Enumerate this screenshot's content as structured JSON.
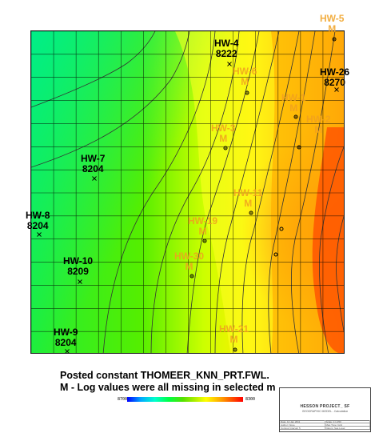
{
  "map": {
    "wells": [
      {
        "name": "HW-5",
        "value": "M",
        "missing": true
      },
      {
        "name": "HW-4",
        "value": "8222",
        "missing": false
      },
      {
        "name": "HW-26",
        "value": "8270",
        "missing": false
      },
      {
        "name": "HW-6",
        "value": "M",
        "missing": true
      },
      {
        "name": "HW-1",
        "value": "M",
        "missing": true
      },
      {
        "name": "HW-3",
        "value": "M",
        "missing": true
      },
      {
        "name": "HW-7",
        "value": "8204",
        "missing": false
      },
      {
        "name": "HW-2",
        "value": "M",
        "missing": true
      },
      {
        "name": "HW-11",
        "value": "M",
        "missing": true
      },
      {
        "name": "HW-8",
        "value": "8204",
        "missing": false
      },
      {
        "name": "HW-19",
        "value": "M",
        "missing": true
      },
      {
        "name": "HW-30",
        "value": "M",
        "missing": true
      },
      {
        "name": "HW-10",
        "value": "8209",
        "missing": false
      },
      {
        "name": "HW-9",
        "value": "8204",
        "missing": false
      },
      {
        "name": "HW-21",
        "value": "M",
        "missing": true
      }
    ],
    "colors": {
      "label_present": "#000000",
      "label_missing": "#f0a020",
      "grid_line": "#000000",
      "contour_line": "#333333"
    },
    "color_ramp": [
      "#00ffaa",
      "#00ff33",
      "#44ee00",
      "#99ee00",
      "#ddff00",
      "#ffff00",
      "#ffcc00",
      "#ff8800",
      "#ff4400",
      "#ff0000"
    ]
  },
  "captions": {
    "line1": "Posted constant THOMEER_KNN_PRT.FWL.",
    "line2": "M - Log values were all missing in selected m"
  },
  "colorbar": {
    "min_label": "8700",
    "max_label": "8300"
  },
  "title_block": {
    "project": "HESSON PROJECT_ SF",
    "subtitle": "GEOGRAPHIC MODEL - Calculation",
    "rows": [
      [
        "Date: 14 Jan 2011",
        "Scale: 1:1,250"
      ],
      [
        "Author: None",
        "Map Type: Grid"
      ],
      [
        "Contour Interval: 5",
        "Datum: Sea Level"
      ]
    ]
  }
}
